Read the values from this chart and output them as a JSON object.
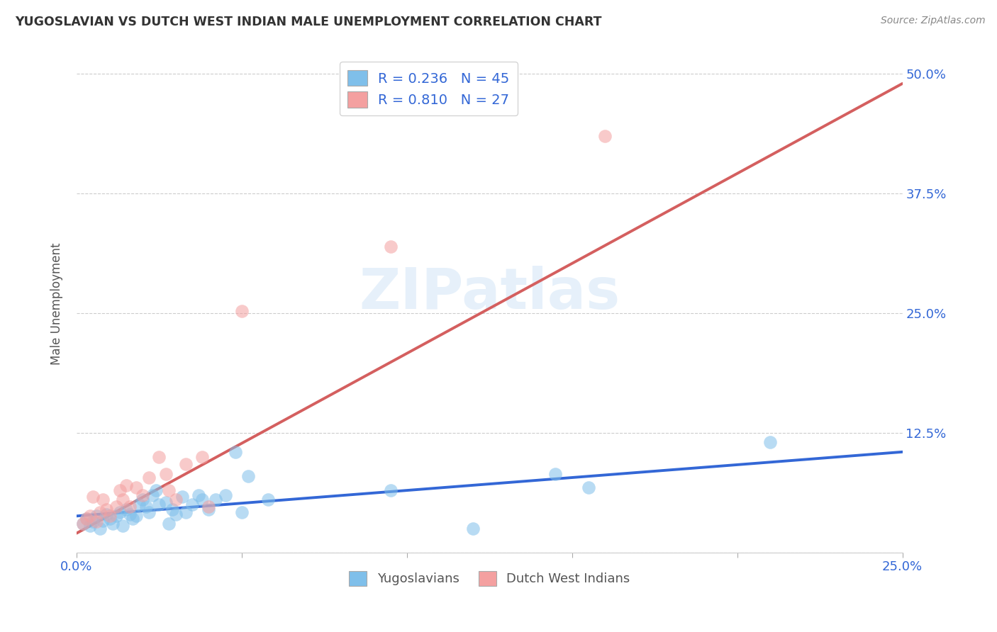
{
  "title": "YUGOSLAVIAN VS DUTCH WEST INDIAN MALE UNEMPLOYMENT CORRELATION CHART",
  "source": "Source: ZipAtlas.com",
  "ylabel": "Male Unemployment",
  "xlim": [
    0.0,
    0.25
  ],
  "ylim": [
    0.0,
    0.52
  ],
  "xticks": [
    0.0,
    0.05,
    0.1,
    0.15,
    0.2,
    0.25
  ],
  "xticklabels": [
    "0.0%",
    "",
    "",
    "",
    "",
    "25.0%"
  ],
  "yticks": [
    0.0,
    0.125,
    0.25,
    0.375,
    0.5
  ],
  "yticklabels": [
    "",
    "12.5%",
    "25.0%",
    "37.5%",
    "50.0%"
  ],
  "blue_R": "0.236",
  "blue_N": "45",
  "pink_R": "0.810",
  "pink_N": "27",
  "blue_color": "#7fbfea",
  "pink_color": "#f4a0a0",
  "blue_line_color": "#3367d6",
  "pink_line_color": "#d45f5f",
  "watermark": "ZIPatlas",
  "legend_label_blue": "Yugoslavians",
  "legend_label_pink": "Dutch West Indians",
  "blue_points": [
    [
      0.002,
      0.03
    ],
    [
      0.003,
      0.035
    ],
    [
      0.004,
      0.028
    ],
    [
      0.005,
      0.032
    ],
    [
      0.006,
      0.038
    ],
    [
      0.007,
      0.025
    ],
    [
      0.008,
      0.033
    ],
    [
      0.009,
      0.04
    ],
    [
      0.01,
      0.035
    ],
    [
      0.011,
      0.03
    ],
    [
      0.012,
      0.038
    ],
    [
      0.013,
      0.042
    ],
    [
      0.014,
      0.028
    ],
    [
      0.015,
      0.045
    ],
    [
      0.016,
      0.04
    ],
    [
      0.017,
      0.035
    ],
    [
      0.018,
      0.038
    ],
    [
      0.019,
      0.05
    ],
    [
      0.02,
      0.055
    ],
    [
      0.021,
      0.048
    ],
    [
      0.022,
      0.042
    ],
    [
      0.023,
      0.06
    ],
    [
      0.024,
      0.065
    ],
    [
      0.025,
      0.05
    ],
    [
      0.027,
      0.052
    ],
    [
      0.028,
      0.03
    ],
    [
      0.029,
      0.045
    ],
    [
      0.03,
      0.04
    ],
    [
      0.032,
      0.058
    ],
    [
      0.033,
      0.042
    ],
    [
      0.035,
      0.05
    ],
    [
      0.037,
      0.06
    ],
    [
      0.038,
      0.055
    ],
    [
      0.04,
      0.045
    ],
    [
      0.042,
      0.055
    ],
    [
      0.045,
      0.06
    ],
    [
      0.048,
      0.105
    ],
    [
      0.05,
      0.042
    ],
    [
      0.052,
      0.08
    ],
    [
      0.058,
      0.055
    ],
    [
      0.095,
      0.065
    ],
    [
      0.12,
      0.025
    ],
    [
      0.145,
      0.082
    ],
    [
      0.155,
      0.068
    ],
    [
      0.21,
      0.115
    ]
  ],
  "pink_points": [
    [
      0.002,
      0.03
    ],
    [
      0.003,
      0.035
    ],
    [
      0.004,
      0.038
    ],
    [
      0.005,
      0.058
    ],
    [
      0.006,
      0.032
    ],
    [
      0.007,
      0.042
    ],
    [
      0.008,
      0.055
    ],
    [
      0.009,
      0.045
    ],
    [
      0.01,
      0.038
    ],
    [
      0.012,
      0.048
    ],
    [
      0.013,
      0.065
    ],
    [
      0.014,
      0.055
    ],
    [
      0.015,
      0.07
    ],
    [
      0.016,
      0.048
    ],
    [
      0.018,
      0.068
    ],
    [
      0.02,
      0.06
    ],
    [
      0.022,
      0.078
    ],
    [
      0.025,
      0.1
    ],
    [
      0.027,
      0.082
    ],
    [
      0.028,
      0.065
    ],
    [
      0.03,
      0.055
    ],
    [
      0.033,
      0.092
    ],
    [
      0.038,
      0.1
    ],
    [
      0.04,
      0.048
    ],
    [
      0.05,
      0.252
    ],
    [
      0.095,
      0.32
    ],
    [
      0.16,
      0.435
    ]
  ],
  "blue_trendline": [
    [
      0.0,
      0.038
    ],
    [
      0.25,
      0.105
    ]
  ],
  "pink_trendline": [
    [
      0.0,
      0.02
    ],
    [
      0.25,
      0.49
    ]
  ]
}
